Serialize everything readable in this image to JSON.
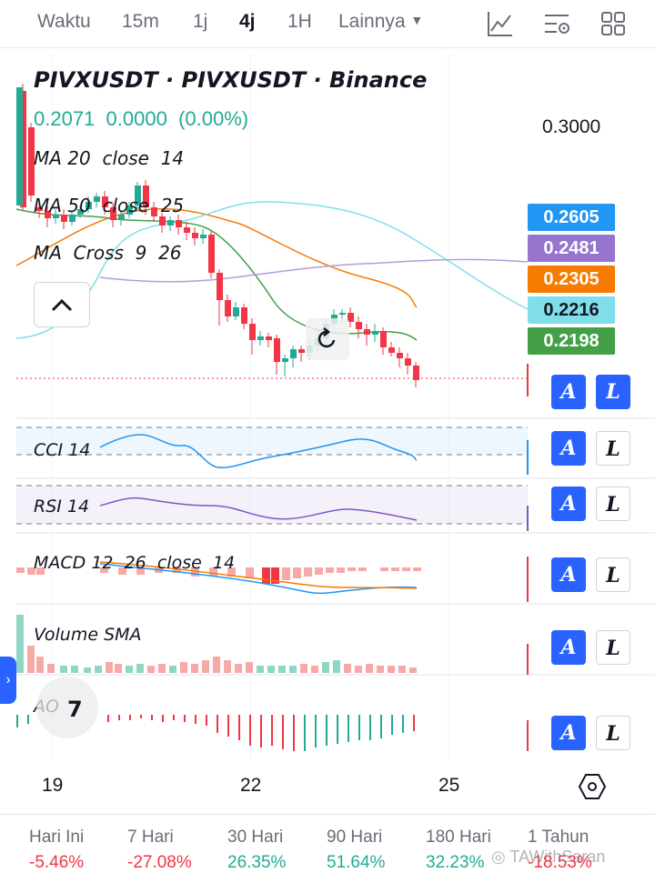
{
  "toolbar": {
    "intervals": [
      "Waktu",
      "15m",
      "1j",
      "4j",
      "1H"
    ],
    "active_interval": "4j",
    "more_label": "Lainnya",
    "icons": [
      "indicator-chart-icon",
      "settings-icon",
      "layout-grid-icon"
    ]
  },
  "symbol": {
    "title": "PIVXUSDT · PIVXUSDT · Binance",
    "last_price": "0.2071",
    "change": "0.0000",
    "change_pct": "(0.00%)"
  },
  "indicators": {
    "ma20": "MA 20  close  14",
    "ma50": "MA 50  close  25",
    "ma_cross": "MA  Cross  9  26",
    "cci": "CCI 14",
    "rsi": "RSI 14",
    "macd": "MACD 12  26  close  14",
    "volume": "Volume SMA",
    "ao": "AO"
  },
  "price_axis": {
    "top_label": "0.3000",
    "badges": [
      {
        "value": "0.2605",
        "color": "#2196f3"
      },
      {
        "value": "0.2481",
        "color": "#9575cd"
      },
      {
        "value": "0.2305",
        "color": "#f57c00"
      },
      {
        "value": "0.2216",
        "color": "#80deea"
      },
      {
        "value": "0.2198",
        "color": "#43a047"
      }
    ]
  },
  "pane_buttons": {
    "alert_label": "A",
    "lock_label": "L"
  },
  "x_axis": {
    "labels": [
      "19",
      "22",
      "25"
    ]
  },
  "performance": [
    {
      "label": "Hari Ini",
      "value": "-5.46%",
      "sign": "neg"
    },
    {
      "label": "7 Hari",
      "value": "-27.08%",
      "sign": "neg"
    },
    {
      "label": "30 Hari",
      "value": "26.35%",
      "sign": "pos"
    },
    {
      "label": "90 Hari",
      "value": "51.64%",
      "sign": "pos"
    },
    {
      "label": "180 Hari",
      "value": "32.23%",
      "sign": "pos"
    },
    {
      "label": "1 Tahun",
      "value": "-18.53%",
      "sign": "neg"
    }
  ],
  "watermark": "TAWithSaran",
  "colors": {
    "up": "#22ab94",
    "down": "#f23645",
    "accent": "#2962ff"
  }
}
